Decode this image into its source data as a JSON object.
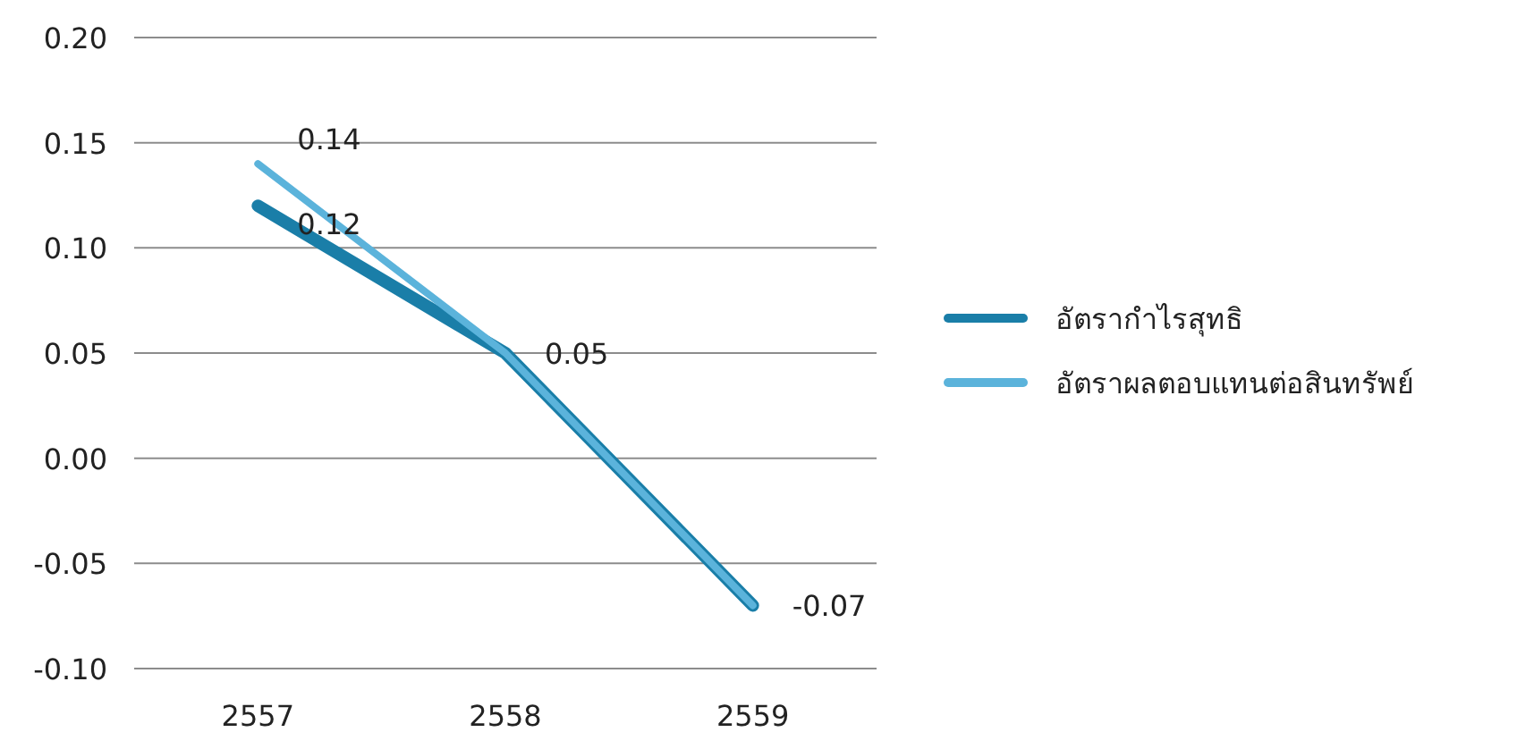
{
  "chart_data": {
    "type": "line",
    "categories": [
      "2557",
      "2558",
      "2559"
    ],
    "series": [
      {
        "name": "อัตรากำไรสุทธิ",
        "color": "#1a7ea8",
        "values": [
          0.12,
          0.05,
          -0.07
        ],
        "value_labels": [
          "0.12",
          "0.05",
          "-0.07"
        ]
      },
      {
        "name": "อัตราผลตอบแทนต่อสินทรัพย์",
        "color": "#5bb3db",
        "values": [
          0.14,
          0.05,
          -0.07
        ],
        "value_labels": [
          "0.14",
          null,
          null
        ]
      }
    ],
    "ylim": [
      -0.1,
      0.2
    ],
    "yticks": [
      {
        "value": -0.1,
        "label": "-0.10"
      },
      {
        "value": -0.05,
        "label": "-0.05"
      },
      {
        "value": 0,
        "label": "0.00"
      },
      {
        "value": 0.05,
        "label": "0.05"
      },
      {
        "value": 0.1,
        "label": "0.10"
      },
      {
        "value": 0.15,
        "label": "0.15"
      },
      {
        "value": 0.2,
        "label": "0.20"
      }
    ],
    "grid": "y",
    "legend": "right",
    "marker": "none",
    "line_style": "solid"
  }
}
